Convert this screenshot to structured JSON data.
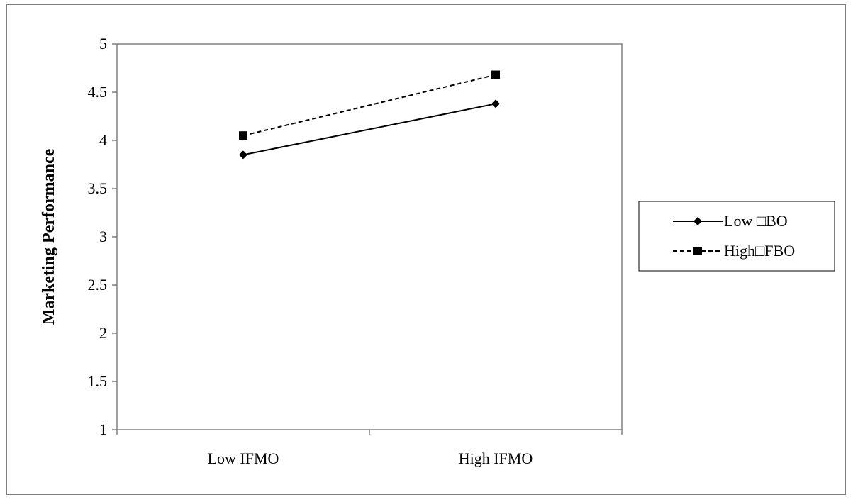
{
  "chart_data": {
    "type": "line",
    "title": "",
    "xlabel": "",
    "ylabel": "Marketing Performance",
    "categories": [
      "Low IFMO",
      "High IFMO"
    ],
    "ylim": [
      1,
      5
    ],
    "yticks": [
      "1",
      "1.5",
      "2",
      "2.5",
      "3",
      "3.5",
      "4",
      "4.5",
      "5"
    ],
    "grid": false,
    "legend_position": "right",
    "series": [
      {
        "name": "Low □BO",
        "values": [
          3.85,
          4.38
        ],
        "marker": "diamond",
        "line_style": "solid",
        "color": "#000000"
      },
      {
        "name": "High□FBO",
        "values": [
          4.05,
          4.68
        ],
        "marker": "square",
        "line_style": "dashed",
        "color": "#000000"
      }
    ]
  }
}
